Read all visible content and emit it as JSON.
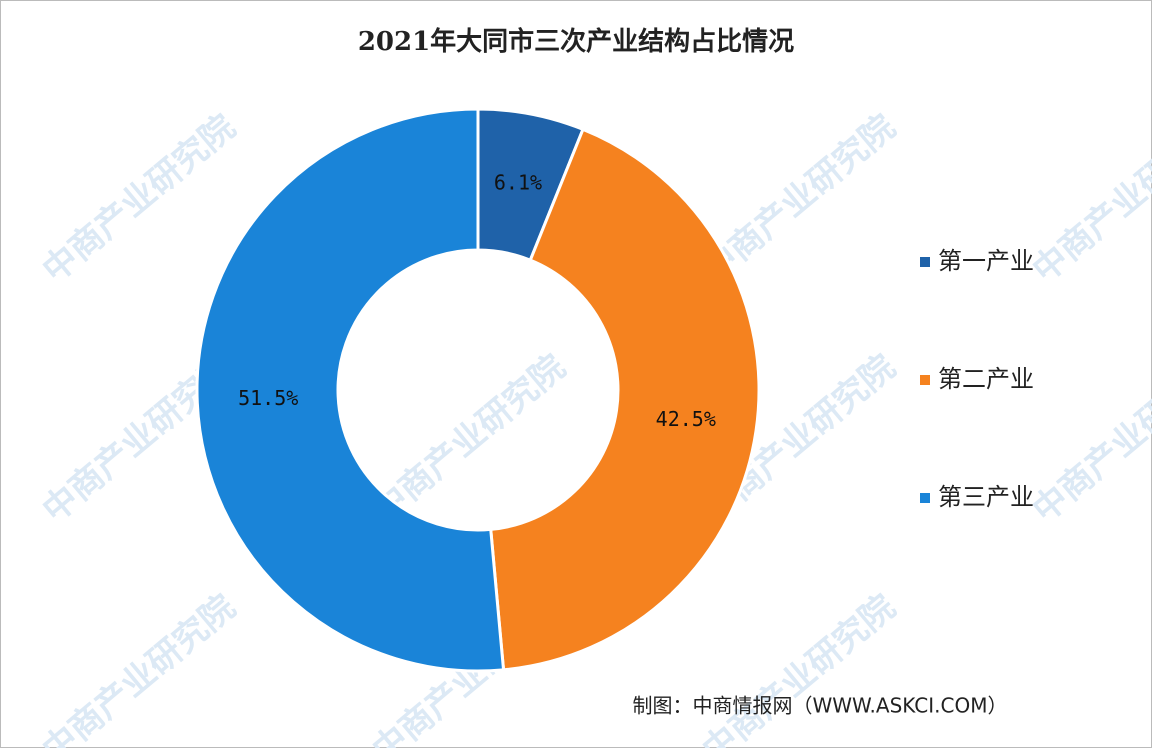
{
  "chart_data": {
    "type": "pie",
    "title": "2021年大同市三次产业结构占比情况",
    "categories": [
      "第一产业",
      "第二产业",
      "第三产业"
    ],
    "values": [
      6.1,
      42.5,
      51.5
    ],
    "value_labels": [
      "6.1%",
      "42.5%",
      "51.5%"
    ],
    "colors": [
      "#1f62a9",
      "#f5821f",
      "#1a84d8"
    ],
    "donut": true,
    "legend": "right",
    "watermark": "中商产业研究院",
    "source": "制图：中商情报网（WWW.ASKCI.COM）"
  }
}
